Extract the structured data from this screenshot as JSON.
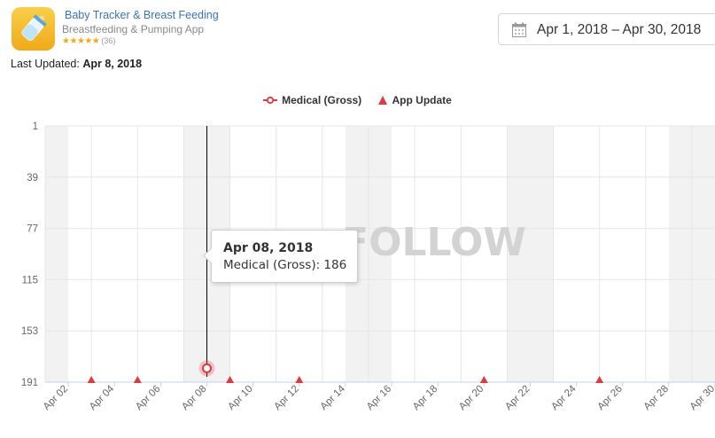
{
  "app": {
    "name": "Baby Tracker & Breast Feeding",
    "subtitle": "Breastfeeding & Pumping App",
    "stars": "★★★★★",
    "rating_count": "(36)",
    "last_updated_label": "Last Updated:",
    "last_updated_value": "Apr 8, 2018",
    "icon_color": "#f5b82e"
  },
  "date_range": {
    "text": "Apr 1, 2018 – Apr 30, 2018"
  },
  "legend": {
    "series_label": "Medical (Gross)",
    "update_label": "App Update"
  },
  "tooltip": {
    "title": "Apr 08, 2018",
    "body": "Medical (Gross): 186"
  },
  "watermark": "FOLLOW",
  "colors": {
    "accent_link": "#3b72b5",
    "marker_red": "#e0393e",
    "weekend_band": "#f2f2f2",
    "grid": "#e6e6e6",
    "axis": "#c7d3e8"
  },
  "chart_data": {
    "type": "line",
    "y_reversed": true,
    "ylim": [
      1,
      191
    ],
    "yticks": [
      1,
      39,
      77,
      115,
      153,
      191
    ],
    "xticks": [
      "Apr 02",
      "Apr 04",
      "Apr 06",
      "Apr 08",
      "Apr 10",
      "Apr 12",
      "Apr 14",
      "Apr 16",
      "Apr 18",
      "Apr 20",
      "Apr 22",
      "Apr 24",
      "Apr 26",
      "Apr 28",
      "Apr 30"
    ],
    "x_range": [
      "2018-04-01",
      "2018-04-30"
    ],
    "weekend_bands": [
      [
        "2018-04-01",
        "2018-04-02"
      ],
      [
        "2018-04-07",
        "2018-04-09"
      ],
      [
        "2018-04-14",
        "2018-04-16"
      ],
      [
        "2018-04-21",
        "2018-04-23"
      ],
      [
        "2018-04-28",
        "2018-04-30"
      ]
    ],
    "series": [
      {
        "name": "Medical (Gross)",
        "points": [
          {
            "x": "2018-04-08",
            "y": 186
          }
        ]
      }
    ],
    "app_updates": [
      "2018-04-03",
      "2018-04-05",
      "2018-04-09",
      "2018-04-12",
      "2018-04-20",
      "2018-04-25"
    ],
    "crosshair_x": "2018-04-08",
    "grid": true,
    "legend_position": "top-center"
  }
}
